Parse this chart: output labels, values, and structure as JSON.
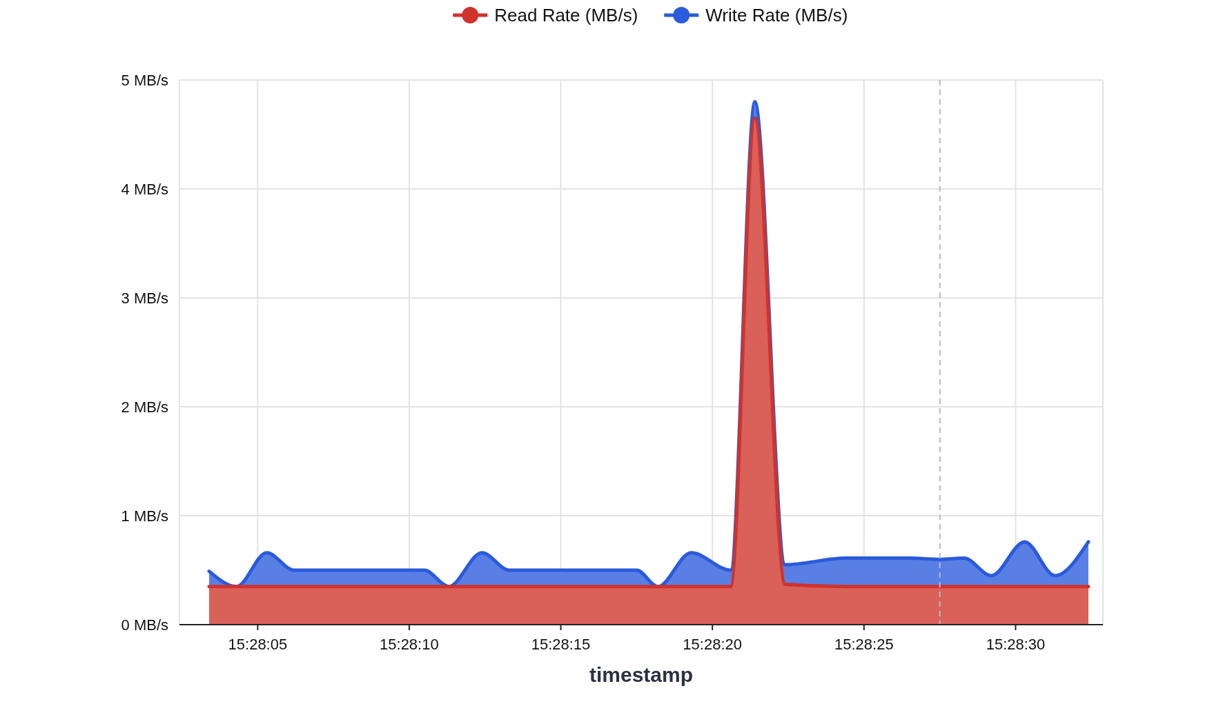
{
  "chart_data": {
    "type": "area",
    "xlabel": "timestamp",
    "x": [
      15.467611,
      15.467861,
      15.468139,
      15.468389,
      15.469583,
      15.469806,
      15.470111,
      15.470361,
      15.471528,
      15.471722,
      15.472028,
      15.472389,
      15.472611,
      15.472889,
      15.473444,
      15.474028,
      15.474306,
      15.474528,
      15.474778,
      15.475083,
      15.475361,
      15.475667
    ],
    "series": [
      {
        "name": "Read Rate (MB/s)",
        "color": "#d0332b",
        "values": [
          0.35,
          0.35,
          0.35,
          0.35,
          0.35,
          0.35,
          0.35,
          0.35,
          0.35,
          0.35,
          0.35,
          0.35,
          4.65,
          0.37,
          0.35,
          0.35,
          0.35,
          0.35,
          0.35,
          0.35,
          0.35,
          0.35
        ]
      },
      {
        "name": "Write Rate (MB/s)",
        "color": "#2a5bdc",
        "values": [
          0.49,
          0.35,
          0.66,
          0.5,
          0.5,
          0.35,
          0.66,
          0.5,
          0.5,
          0.35,
          0.66,
          0.5,
          4.8,
          0.55,
          0.61,
          0.61,
          0.6,
          0.61,
          0.45,
          0.76,
          0.45,
          0.76
        ]
      }
    ],
    "xlim": [
      15.467339,
      15.4758
    ],
    "xticks": [
      {
        "value": 15.468056,
        "label": "15:28:05"
      },
      {
        "value": 15.469444,
        "label": "15:28:10"
      },
      {
        "value": 15.470833,
        "label": "15:28:15"
      },
      {
        "value": 15.472222,
        "label": "15:28:20"
      },
      {
        "value": 15.473611,
        "label": "15:28:25"
      },
      {
        "value": 15.475,
        "label": "15:28:30"
      }
    ],
    "ylim": [
      0,
      5
    ],
    "yticks": [
      {
        "value": 0,
        "label": "0 MB/s"
      },
      {
        "value": 1,
        "label": "1 MB/s"
      },
      {
        "value": 2,
        "label": "2 MB/s"
      },
      {
        "value": 3,
        "label": "3 MB/s"
      },
      {
        "value": 4,
        "label": "4 MB/s"
      },
      {
        "value": 5,
        "label": "5 MB/s"
      }
    ],
    "ref_lines": [
      {
        "axis": "x",
        "value": 15.474306,
        "color": "#b8b8c8",
        "line_style": "dashed"
      }
    ],
    "grid": true,
    "legend": "top",
    "line_style": "solid"
  }
}
